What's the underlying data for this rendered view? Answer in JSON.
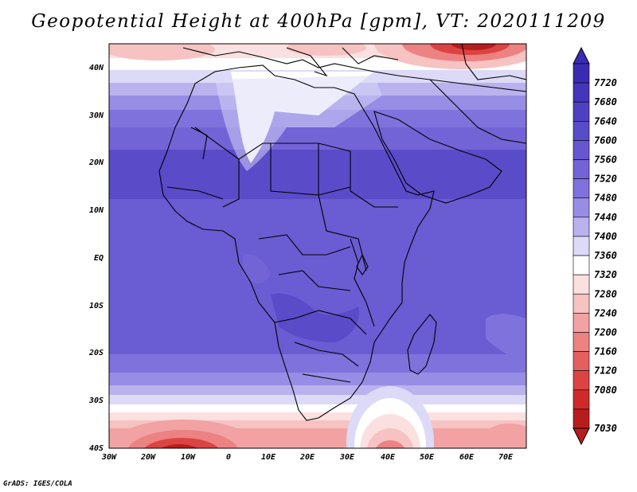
{
  "title": "Geopotential Height at 400hPa [gpm], VT: 2020111209",
  "credit": "GrADS: IGES/COLA",
  "map": {
    "lon_labels": [
      "30W",
      "20W",
      "10W",
      "0",
      "10E",
      "20E",
      "30E",
      "40E",
      "50E",
      "60E",
      "70E"
    ],
    "lat_labels": [
      "40N",
      "30N",
      "20N",
      "10N",
      "EQ",
      "10S",
      "20S",
      "30S",
      "40S"
    ]
  },
  "colorbar": {
    "labels": [
      "7720",
      "7680",
      "7640",
      "7600",
      "7560",
      "7520",
      "7480",
      "7440",
      "7400",
      "7360",
      "7320",
      "7280",
      "7240",
      "7200",
      "7160",
      "7120",
      "7080",
      "7030"
    ],
    "colors": [
      "#3b2bb3",
      "#4535ba",
      "#4f40c2",
      "#5a4bc9",
      "#6657d0",
      "#7264d6",
      "#7f72dc",
      "#978de4",
      "#b9b2ee",
      "#dcdaf7",
      "#ffffff",
      "#fbe0e0",
      "#f7c2c2",
      "#f2a2a2",
      "#ec8282",
      "#e46060",
      "#dc4343",
      "#cf2a2a",
      "#b81d1d"
    ]
  }
}
